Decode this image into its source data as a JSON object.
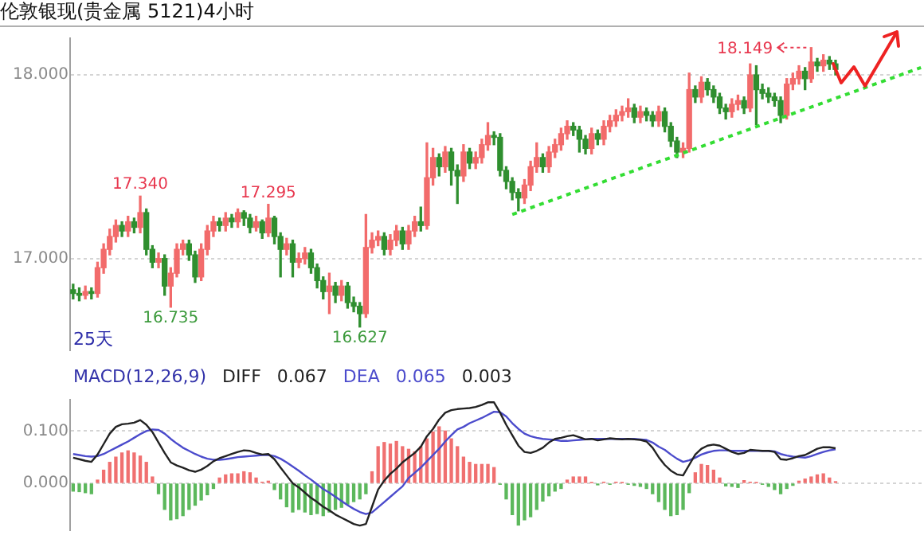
{
  "chart_data": [
    {
      "type": "candlestick",
      "title": "伦敦银现(贵金属 5121)4小时",
      "categories": [
        null,
        null,
        null,
        null,
        null,
        null,
        null,
        null,
        null,
        null,
        null,
        null,
        null,
        null,
        null,
        null,
        null,
        null,
        null,
        null,
        null,
        null,
        null,
        null,
        null,
        null,
        null,
        null,
        null,
        null,
        null,
        null,
        null,
        null,
        null,
        null,
        null,
        null,
        null,
        null,
        null,
        null,
        null,
        null,
        null,
        null,
        null,
        null,
        null,
        null,
        null,
        null,
        null,
        null,
        null,
        null,
        null,
        null,
        null,
        null,
        null,
        null,
        null,
        null,
        null,
        null,
        null,
        null,
        null,
        null,
        null,
        null,
        null,
        null,
        null,
        null,
        null,
        null,
        null,
        null,
        null,
        null,
        null,
        null,
        null,
        null,
        null,
        null,
        null,
        null,
        null,
        null,
        null,
        null,
        null,
        null,
        null,
        null,
        null,
        null,
        null,
        null,
        null,
        null,
        null,
        null,
        null,
        null,
        null,
        null,
        null,
        null,
        null,
        null,
        null,
        null,
        null,
        null,
        null,
        null,
        null,
        null,
        null,
        null,
        null,
        null,
        null,
        null,
        null,
        null,
        null,
        null,
        null,
        null,
        null,
        null,
        null,
        null,
        null,
        null
      ],
      "ohlc": [
        [
          16.83,
          16.86,
          16.78,
          16.81
        ],
        [
          16.81,
          16.84,
          16.77,
          16.8
        ],
        [
          16.8,
          16.85,
          16.78,
          16.82
        ],
        [
          16.82,
          16.84,
          16.78,
          16.81
        ],
        [
          16.81,
          16.98,
          16.79,
          16.95
        ],
        [
          16.95,
          17.08,
          16.92,
          17.05
        ],
        [
          17.05,
          17.16,
          17.02,
          17.12
        ],
        [
          17.12,
          17.21,
          17.09,
          17.18
        ],
        [
          17.18,
          17.2,
          17.12,
          17.15
        ],
        [
          17.15,
          17.23,
          17.12,
          17.2
        ],
        [
          17.2,
          17.22,
          17.14,
          17.17
        ],
        [
          17.17,
          17.34,
          17.14,
          17.25
        ],
        [
          17.25,
          17.27,
          17.02,
          17.05
        ],
        [
          17.05,
          17.07,
          16.95,
          16.98
        ],
        [
          16.98,
          17.03,
          16.95,
          17
        ],
        [
          17,
          17.02,
          16.8,
          16.85
        ],
        [
          16.85,
          16.95,
          16.735,
          16.92
        ],
        [
          16.92,
          17.08,
          16.9,
          17.05
        ],
        [
          17.05,
          17.1,
          17.02,
          17.08
        ],
        [
          17.08,
          17.1,
          16.99,
          17.02
        ],
        [
          17.02,
          17.04,
          16.87,
          16.9
        ],
        [
          16.9,
          17.08,
          16.88,
          17.05
        ],
        [
          17.05,
          17.18,
          17.02,
          17.15
        ],
        [
          17.15,
          17.23,
          17.12,
          17.2
        ],
        [
          17.2,
          17.22,
          17.15,
          17.18
        ],
        [
          17.18,
          17.25,
          17.15,
          17.22
        ],
        [
          17.22,
          17.24,
          17.17,
          17.2
        ],
        [
          17.2,
          17.27,
          17.17,
          17.25
        ],
        [
          17.25,
          17.26,
          17.18,
          17.22
        ],
        [
          17.22,
          17.24,
          17.14,
          17.17
        ],
        [
          17.17,
          17.23,
          17.15,
          17.2
        ],
        [
          17.2,
          17.21,
          17.11,
          17.14
        ],
        [
          17.14,
          17.295,
          17.12,
          17.22
        ],
        [
          17.22,
          17.23,
          17.08,
          17.12
        ],
        [
          17.12,
          17.14,
          16.9,
          17.05
        ],
        [
          17.05,
          17.11,
          17.02,
          17.08
        ],
        [
          17.08,
          17.1,
          16.9,
          16.98
        ],
        [
          16.98,
          17.03,
          16.95,
          17
        ],
        [
          17,
          17.06,
          16.97,
          17.03
        ],
        [
          17.03,
          17.05,
          16.92,
          16.95
        ],
        [
          16.95,
          16.97,
          16.84,
          16.88
        ],
        [
          16.88,
          16.9,
          16.78,
          16.82
        ],
        [
          16.82,
          16.92,
          16.7,
          16.85
        ],
        [
          16.85,
          16.87,
          16.76,
          16.8
        ],
        [
          16.8,
          16.88,
          16.77,
          16.85
        ],
        [
          16.85,
          16.87,
          16.73,
          16.76
        ],
        [
          16.76,
          16.79,
          16.71,
          16.74
        ],
        [
          16.74,
          16.76,
          16.627,
          16.7
        ],
        [
          16.7,
          17.24,
          16.68,
          17.06
        ],
        [
          17.06,
          17.14,
          17.03,
          17.1
        ],
        [
          17.1,
          17.15,
          17.07,
          17.12
        ],
        [
          17.12,
          17.14,
          17.02,
          17.05
        ],
        [
          17.05,
          17.13,
          17.02,
          17.1
        ],
        [
          17.1,
          17.18,
          17.07,
          17.15
        ],
        [
          17.15,
          17.17,
          17.05,
          17.08
        ],
        [
          17.08,
          17.18,
          17.05,
          17.15
        ],
        [
          17.15,
          17.23,
          17.12,
          17.2
        ],
        [
          17.2,
          17.28,
          17.15,
          17.18
        ],
        [
          17.18,
          17.63,
          17.16,
          17.44
        ],
        [
          17.44,
          17.6,
          17.4,
          17.55
        ],
        [
          17.55,
          17.57,
          17.45,
          17.5
        ],
        [
          17.5,
          17.61,
          17.47,
          17.58
        ],
        [
          17.58,
          17.6,
          17.4,
          17.48
        ],
        [
          17.48,
          17.51,
          17.3,
          17.45
        ],
        [
          17.45,
          17.62,
          17.42,
          17.58
        ],
        [
          17.58,
          17.6,
          17.49,
          17.52
        ],
        [
          17.52,
          17.58,
          17.49,
          17.55
        ],
        [
          17.55,
          17.65,
          17.52,
          17.62
        ],
        [
          17.62,
          17.74,
          17.59,
          17.67
        ],
        [
          17.67,
          17.69,
          17.62,
          17.66
        ],
        [
          17.66,
          17.68,
          17.45,
          17.48
        ],
        [
          17.48,
          17.5,
          17.38,
          17.42
        ],
        [
          17.42,
          17.44,
          17.32,
          17.36
        ],
        [
          17.36,
          17.38,
          17.26,
          17.33
        ],
        [
          17.33,
          17.43,
          17.3,
          17.4
        ],
        [
          17.4,
          17.53,
          17.37,
          17.5
        ],
        [
          17.5,
          17.63,
          17.47,
          17.55
        ],
        [
          17.55,
          17.57,
          17.47,
          17.5
        ],
        [
          17.5,
          17.61,
          17.47,
          17.58
        ],
        [
          17.58,
          17.65,
          17.55,
          17.62
        ],
        [
          17.62,
          17.71,
          17.59,
          17.68
        ],
        [
          17.68,
          17.75,
          17.65,
          17.72
        ],
        [
          17.72,
          17.74,
          17.67,
          17.7
        ],
        [
          17.7,
          17.72,
          17.58,
          17.65
        ],
        [
          17.65,
          17.67,
          17.57,
          17.6
        ],
        [
          17.6,
          17.71,
          17.57,
          17.68
        ],
        [
          17.68,
          17.7,
          17.62,
          17.65
        ],
        [
          17.65,
          17.75,
          17.62,
          17.72
        ],
        [
          17.72,
          17.78,
          17.69,
          17.75
        ],
        [
          17.75,
          17.81,
          17.72,
          17.78
        ],
        [
          17.78,
          17.83,
          17.75,
          17.8
        ],
        [
          17.8,
          17.87,
          17.77,
          17.82
        ],
        [
          17.82,
          17.84,
          17.74,
          17.77
        ],
        [
          17.77,
          17.83,
          17.74,
          17.8
        ],
        [
          17.8,
          17.82,
          17.75,
          17.78
        ],
        [
          17.78,
          17.8,
          17.72,
          17.75
        ],
        [
          17.75,
          17.83,
          17.72,
          17.8
        ],
        [
          17.8,
          17.82,
          17.69,
          17.72
        ],
        [
          17.72,
          17.74,
          17.61,
          17.64
        ],
        [
          17.64,
          17.66,
          17.55,
          17.58
        ],
        [
          17.58,
          17.63,
          17.55,
          17.6
        ],
        [
          17.6,
          18.01,
          17.58,
          17.92
        ],
        [
          17.92,
          17.94,
          17.85,
          17.88
        ],
        [
          17.88,
          17.99,
          17.85,
          17.96
        ],
        [
          17.96,
          17.98,
          17.89,
          17.92
        ],
        [
          17.92,
          17.94,
          17.85,
          17.88
        ],
        [
          17.88,
          17.9,
          17.79,
          17.82
        ],
        [
          17.82,
          17.84,
          17.76,
          17.8
        ],
        [
          17.8,
          17.87,
          17.77,
          17.84
        ],
        [
          17.84,
          17.89,
          17.81,
          17.86
        ],
        [
          17.86,
          17.88,
          17.79,
          17.82
        ],
        [
          17.82,
          18.06,
          17.8,
          18
        ],
        [
          18,
          18.05,
          17.73,
          17.92
        ],
        [
          17.92,
          17.95,
          17.87,
          17.9
        ],
        [
          17.9,
          17.93,
          17.85,
          17.88
        ],
        [
          17.88,
          17.9,
          17.83,
          17.86
        ],
        [
          17.86,
          17.88,
          17.74,
          17.78
        ],
        [
          17.78,
          17.98,
          17.76,
          17.95
        ],
        [
          17.95,
          18.01,
          17.92,
          17.98
        ],
        [
          17.98,
          18.05,
          17.95,
          18.02
        ],
        [
          18.02,
          18.04,
          17.92,
          17.98
        ],
        [
          17.98,
          18.149,
          17.96,
          18.07
        ],
        [
          18.07,
          18.09,
          18.02,
          18.05
        ],
        [
          18.05,
          18.11,
          18.02,
          18.08
        ],
        [
          18.08,
          18.1,
          18.03,
          18.06
        ],
        [
          18.06,
          18.08,
          18,
          18.03
        ],
        null,
        null,
        null,
        null,
        null,
        null,
        null,
        null,
        null,
        null,
        null,
        null,
        null,
        null
      ],
      "colors": [
        "#2f8f2f",
        "#2f8f2f",
        "#f26b6b",
        "#2f8f2f",
        "#f26b6b",
        "#f26b6b",
        "#f26b6b",
        "#f26b6b",
        "#2f8f2f",
        "#f26b6b",
        "#2f8f2f",
        "#f26b6b",
        "#2f8f2f",
        "#2f8f2f",
        "#f26b6b",
        "#2f8f2f",
        "#f26b6b",
        "#f26b6b",
        "#f26b6b",
        "#2f8f2f",
        "#2f8f2f",
        "#f26b6b",
        "#f26b6b",
        "#f26b6b",
        "#2f8f2f",
        "#f26b6b",
        "#2f8f2f",
        "#f26b6b",
        "#2f8f2f",
        "#2f8f2f",
        "#f26b6b",
        "#2f8f2f",
        "#f26b6b",
        "#2f8f2f",
        "#2f8f2f",
        "#f26b6b",
        "#2f8f2f",
        "#f26b6b",
        "#f26b6b",
        "#2f8f2f",
        "#2f8f2f",
        "#2f8f2f",
        "#f26b6b",
        "#2f8f2f",
        "#f26b6b",
        "#2f8f2f",
        "#2f8f2f",
        "#2f8f2f",
        "#f26b6b",
        "#f26b6b",
        "#f26b6b",
        "#2f8f2f",
        "#f26b6b",
        "#f26b6b",
        "#2f8f2f",
        "#f26b6b",
        "#f26b6b",
        "#2f8f2f",
        "#f26b6b",
        "#f26b6b",
        "#2f8f2f",
        "#f26b6b",
        "#2f8f2f",
        "#2f8f2f",
        "#f26b6b",
        "#2f8f2f",
        "#f26b6b",
        "#f26b6b",
        "#f26b6b",
        "#2f8f2f",
        "#2f8f2f",
        "#2f8f2f",
        "#2f8f2f",
        "#2f8f2f",
        "#f26b6b",
        "#f26b6b",
        "#f26b6b",
        "#2f8f2f",
        "#f26b6b",
        "#f26b6b",
        "#f26b6b",
        "#f26b6b",
        "#2f8f2f",
        "#2f8f2f",
        "#2f8f2f",
        "#f26b6b",
        "#2f8f2f",
        "#f26b6b",
        "#f26b6b",
        "#f26b6b",
        "#f26b6b",
        "#f26b6b",
        "#2f8f2f",
        "#f26b6b",
        "#2f8f2f",
        "#2f8f2f",
        "#f26b6b",
        "#2f8f2f",
        "#2f8f2f",
        "#2f8f2f",
        "#f26b6b",
        "#f26b6b",
        "#2f8f2f",
        "#f26b6b",
        "#2f8f2f",
        "#2f8f2f",
        "#2f8f2f",
        "#2f8f2f",
        "#f26b6b",
        "#f26b6b",
        "#2f8f2f",
        "#f26b6b",
        "#2f8f2f",
        "#2f8f2f",
        "#2f8f2f",
        "#2f8f2f",
        "#2f8f2f",
        "#f26b6b",
        "#f26b6b",
        "#f26b6b",
        "#2f8f2f",
        "#f26b6b",
        "#2f8f2f",
        "#f26b6b",
        "#2f8f2f",
        "#2f8f2f",
        null,
        null,
        null,
        null,
        null,
        null,
        null,
        null,
        null,
        null,
        null,
        null,
        null,
        null
      ],
      "value_labels": [
        null,
        null,
        null,
        null,
        null,
        null,
        null,
        null,
        null,
        null,
        null,
        "17.340",
        null,
        null,
        null,
        null,
        "16.735",
        null,
        null,
        null,
        null,
        null,
        null,
        null,
        null,
        null,
        null,
        null,
        null,
        null,
        null,
        null,
        "17.295",
        null,
        null,
        null,
        null,
        null,
        null,
        null,
        null,
        null,
        null,
        null,
        null,
        null,
        null,
        "16.627",
        null,
        null,
        null,
        null,
        null,
        null,
        null,
        null,
        null,
        null,
        null,
        null,
        null,
        null,
        null,
        null,
        null,
        null,
        null,
        null,
        null,
        null,
        null,
        null,
        null,
        null,
        null,
        null,
        null,
        null,
        null,
        null,
        null,
        null,
        null,
        null,
        null,
        null,
        null,
        null,
        null,
        null,
        null,
        null,
        null,
        null,
        null,
        null,
        null,
        null,
        null,
        null,
        null,
        null,
        null,
        null,
        null,
        null,
        null,
        null,
        null,
        null,
        null,
        null,
        null,
        null,
        null,
        null,
        null,
        null,
        null,
        null,
        null,
        "18.149",
        null,
        null,
        null,
        null,
        null,
        null,
        null,
        null,
        null,
        null,
        null,
        null,
        null,
        null,
        null,
        null,
        null,
        null
      ],
      "series": [
        {
          "type": "line",
          "color": "#33dd33",
          "line_style": "dotted",
          "values": [
            null,
            null,
            null,
            null,
            null,
            null,
            null,
            null,
            null,
            null,
            null,
            null,
            null,
            null,
            null,
            null,
            null,
            null,
            null,
            null,
            null,
            null,
            null,
            null,
            null,
            null,
            null,
            null,
            null,
            null,
            null,
            null,
            null,
            null,
            null,
            null,
            null,
            null,
            null,
            null,
            null,
            null,
            null,
            null,
            null,
            null,
            null,
            null,
            null,
            null,
            null,
            null,
            null,
            null,
            null,
            null,
            null,
            null,
            null,
            null,
            null,
            null,
            null,
            null,
            null,
            null,
            null,
            null,
            null,
            null,
            null,
            null,
            17.24,
            null,
            null,
            null,
            null,
            null,
            null,
            null,
            null,
            null,
            null,
            null,
            null,
            null,
            null,
            null,
            null,
            null,
            null,
            null,
            null,
            null,
            null,
            null,
            null,
            null,
            null,
            null,
            null,
            null,
            null,
            null,
            null,
            null,
            null,
            null,
            null,
            null,
            null,
            null,
            null,
            null,
            null,
            null,
            null,
            null,
            null,
            null,
            null,
            null,
            null,
            null,
            null,
            null,
            null,
            null,
            null,
            null,
            null,
            null,
            null,
            null,
            null,
            null,
            null,
            null,
            null,
            18.04
          ]
        }
      ],
      "ylim": [
        16.5,
        18.2
      ],
      "yticks": [
        {
          "value": 17,
          "label": "17.000"
        },
        {
          "value": 18,
          "label": "18.000"
        }
      ],
      "grid": "y",
      "tick_labels": "y",
      "annotations": [
        "25天"
      ]
    },
    {
      "type": "bar",
      "title": "MACD(12,26,9)",
      "categories": [
        null,
        null,
        null,
        null,
        null,
        null,
        null,
        null,
        null,
        null,
        null,
        null,
        null,
        null,
        null,
        null,
        null,
        null,
        null,
        null,
        null,
        null,
        null,
        null,
        null,
        null,
        null,
        null,
        null,
        null,
        null,
        null,
        null,
        null,
        null,
        null,
        null,
        null,
        null,
        null,
        null,
        null,
        null,
        null,
        null,
        null,
        null,
        null,
        null,
        null,
        null,
        null,
        null,
        null,
        null,
        null,
        null,
        null,
        null,
        null,
        null,
        null,
        null,
        null,
        null,
        null,
        null,
        null,
        null,
        null,
        null,
        null,
        null,
        null,
        null,
        null,
        null,
        null,
        null,
        null,
        null,
        null,
        null,
        null,
        null,
        null,
        null,
        null,
        null,
        null,
        null,
        null,
        null,
        null,
        null,
        null,
        null,
        null,
        null,
        null,
        null,
        null,
        null,
        null,
        null,
        null,
        null,
        null,
        null,
        null,
        null,
        null,
        null,
        null,
        null,
        null,
        null,
        null,
        null,
        null,
        null,
        null,
        null,
        null,
        null,
        null,
        null,
        null,
        null,
        null,
        null,
        null,
        null,
        null,
        null,
        null,
        null,
        null,
        null,
        null
      ],
      "series": [
        {
          "name": "DIFF",
          "type": "line",
          "color": "#222222",
          "values": [
            0.049,
            0.046,
            0.043,
            0.041,
            0.055,
            0.075,
            0.095,
            0.108,
            0.113,
            0.114,
            0.116,
            0.121,
            0.112,
            0.098,
            0.078,
            0.058,
            0.04,
            0.034,
            0.03,
            0.025,
            0.022,
            0.026,
            0.033,
            0.042,
            0.048,
            0.052,
            0.056,
            0.06,
            0.063,
            0.062,
            0.058,
            0.055,
            0.056,
            0.046,
            0.03,
            0.015,
            0,
            -0.008,
            -0.018,
            -0.028,
            -0.036,
            -0.045,
            -0.052,
            -0.06,
            -0.066,
            -0.072,
            -0.078,
            -0.081,
            -0.078,
            -0.045,
            -0.012,
            0.005,
            0.018,
            0.028,
            0.04,
            0.049,
            0.058,
            0.07,
            0.09,
            0.104,
            0.122,
            0.135,
            0.14,
            0.142,
            0.143,
            0.144,
            0.146,
            0.15,
            0.155,
            0.155,
            0.135,
            0.112,
            0.092,
            0.072,
            0.06,
            0.058,
            0.062,
            0.068,
            0.078,
            0.085,
            0.087,
            0.09,
            0.092,
            0.088,
            0.084,
            0.085,
            0.082,
            0.084,
            0.086,
            0.085,
            0.084,
            0.085,
            0.084,
            0.083,
            0.08,
            0.068,
            0.05,
            0.035,
            0.024,
            0.017,
            0.015,
            0.035,
            0.055,
            0.066,
            0.072,
            0.074,
            0.072,
            0.066,
            0.06,
            0.056,
            0.058,
            0.064,
            0.063,
            0.062,
            0.062,
            0.06,
            0.046,
            0.045,
            0.048,
            0.052,
            0.054,
            0.06,
            0.066,
            0.069,
            0.069,
            0.067,
            null,
            null,
            null,
            null,
            null,
            null,
            null,
            null,
            null,
            null,
            null,
            null,
            null,
            null
          ]
        },
        {
          "name": "DEA",
          "type": "line",
          "color": "#4b4bcc",
          "values": [
            0.056,
            0.054,
            0.052,
            0.051,
            0.052,
            0.056,
            0.062,
            0.068,
            0.074,
            0.08,
            0.087,
            0.094,
            0.1,
            0.103,
            0.102,
            0.095,
            0.085,
            0.076,
            0.068,
            0.062,
            0.056,
            0.051,
            0.047,
            0.045,
            0.045,
            0.046,
            0.048,
            0.05,
            0.051,
            0.052,
            0.053,
            0.054,
            0.054,
            0.052,
            0.047,
            0.04,
            0.032,
            0.024,
            0.015,
            0.007,
            -0.002,
            -0.011,
            -0.018,
            -0.026,
            -0.034,
            -0.042,
            -0.049,
            -0.055,
            -0.059,
            -0.056,
            -0.046,
            -0.036,
            -0.026,
            -0.016,
            -0.006,
            0.01,
            0.02,
            0.03,
            0.042,
            0.054,
            0.066,
            0.08,
            0.092,
            0.103,
            0.108,
            0.115,
            0.12,
            0.125,
            0.131,
            0.137,
            0.136,
            0.128,
            0.115,
            0.104,
            0.095,
            0.09,
            0.087,
            0.085,
            0.084,
            0.083,
            0.081,
            0.081,
            0.082,
            0.083,
            0.084,
            0.085,
            0.085,
            0.085,
            0.085,
            0.085,
            0.085,
            0.085,
            0.085,
            0.084,
            0.083,
            0.078,
            0.07,
            0.064,
            0.055,
            0.047,
            0.041,
            0.044,
            0.049,
            0.055,
            0.059,
            0.062,
            0.063,
            0.063,
            0.062,
            0.062,
            0.062,
            0.062,
            0.062,
            0.062,
            0.062,
            0.061,
            0.056,
            0.053,
            0.051,
            0.05,
            0.049,
            0.052,
            0.056,
            0.06,
            0.063,
            0.065,
            null,
            null,
            null,
            null,
            null,
            null,
            null,
            null,
            null,
            null,
            null,
            null,
            null,
            null
          ]
        },
        {
          "type": "bar",
          "values": [
            -0.015,
            -0.016,
            -0.018,
            -0.02,
            0.006,
            0.025,
            0.04,
            0.05,
            0.058,
            0.062,
            0.058,
            0.052,
            0.04,
            0.012,
            -0.02,
            -0.05,
            -0.07,
            -0.068,
            -0.062,
            -0.05,
            -0.042,
            -0.032,
            -0.022,
            -0.01,
            0.01,
            0.016,
            0.018,
            0.018,
            0.022,
            0.02,
            0.01,
            0.002,
            0.004,
            -0.012,
            -0.03,
            -0.045,
            -0.055,
            -0.05,
            -0.055,
            -0.06,
            -0.058,
            -0.062,
            -0.055,
            -0.05,
            -0.046,
            -0.04,
            -0.035,
            -0.03,
            -0.02,
            0.022,
            0.07,
            0.078,
            0.075,
            0.08,
            0.07,
            0.065,
            0.06,
            0.07,
            0.085,
            0.098,
            0.108,
            0.1,
            0.085,
            0.07,
            0.05,
            0.04,
            0.036,
            0.036,
            0.036,
            0.03,
            -0.002,
            -0.03,
            -0.06,
            -0.08,
            -0.07,
            -0.064,
            -0.05,
            -0.034,
            -0.024,
            -0.015,
            -0.01,
            0.006,
            0.012,
            0.012,
            0.012,
            0.001,
            -0.003,
            0.002,
            -0.002,
            0.002,
            0.001,
            -0.002,
            -0.004,
            -0.006,
            -0.01,
            -0.02,
            -0.035,
            -0.05,
            -0.062,
            -0.06,
            -0.05,
            -0.018,
            0.02,
            0.036,
            0.034,
            0.025,
            0.01,
            -0.005,
            -0.006,
            -0.008,
            0.005,
            0.002,
            0.001,
            -0.002,
            -0.006,
            -0.012,
            -0.02,
            -0.01,
            -0.004,
            0.004,
            0.008,
            0.012,
            0.016,
            0.018,
            0.01,
            0.003,
            null,
            null,
            null,
            null,
            null,
            null,
            null,
            null,
            null,
            null,
            null,
            null,
            null,
            null
          ],
          "colors": [
            "#5cb85c",
            "#5cb85c",
            "#5cb85c",
            "#5cb85c",
            "#f07070",
            "#f07070",
            "#f07070",
            "#f07070",
            "#f07070",
            "#f07070",
            "#f07070",
            "#f07070",
            "#f07070",
            "#f07070",
            "#5cb85c",
            "#5cb85c",
            "#5cb85c",
            "#5cb85c",
            "#5cb85c",
            "#5cb85c",
            "#5cb85c",
            "#5cb85c",
            "#5cb85c",
            "#5cb85c",
            "#f07070",
            "#f07070",
            "#f07070",
            "#f07070",
            "#f07070",
            "#f07070",
            "#f07070",
            "#f07070",
            "#f07070",
            "#5cb85c",
            "#5cb85c",
            "#5cb85c",
            "#5cb85c",
            "#5cb85c",
            "#5cb85c",
            "#5cb85c",
            "#5cb85c",
            "#5cb85c",
            "#5cb85c",
            "#5cb85c",
            "#5cb85c",
            "#5cb85c",
            "#5cb85c",
            "#5cb85c",
            "#5cb85c",
            "#f07070",
            "#f07070",
            "#f07070",
            "#f07070",
            "#f07070",
            "#f07070",
            "#f07070",
            "#f07070",
            "#f07070",
            "#f07070",
            "#f07070",
            "#f07070",
            "#f07070",
            "#f07070",
            "#f07070",
            "#f07070",
            "#f07070",
            "#f07070",
            "#f07070",
            "#f07070",
            "#f07070",
            "#5cb85c",
            "#5cb85c",
            "#5cb85c",
            "#5cb85c",
            "#5cb85c",
            "#5cb85c",
            "#5cb85c",
            "#5cb85c",
            "#5cb85c",
            "#5cb85c",
            "#5cb85c",
            "#f07070",
            "#f07070",
            "#f07070",
            "#f07070",
            "#f07070",
            "#5cb85c",
            "#f07070",
            "#5cb85c",
            "#f07070",
            "#f07070",
            "#5cb85c",
            "#5cb85c",
            "#5cb85c",
            "#5cb85c",
            "#5cb85c",
            "#5cb85c",
            "#5cb85c",
            "#5cb85c",
            "#5cb85c",
            "#5cb85c",
            "#5cb85c",
            "#f07070",
            "#f07070",
            "#f07070",
            "#f07070",
            "#f07070",
            "#5cb85c",
            "#5cb85c",
            "#5cb85c",
            "#f07070",
            "#f07070",
            "#f07070",
            "#5cb85c",
            "#5cb85c",
            "#5cb85c",
            "#5cb85c",
            "#5cb85c",
            "#5cb85c",
            "#f07070",
            "#f07070",
            "#f07070",
            "#f07070",
            "#f07070",
            "#f07070",
            "#f07070",
            null,
            null,
            null,
            null,
            null,
            null,
            null,
            null,
            null,
            null,
            null,
            null,
            null,
            null
          ]
        }
      ],
      "ylim": [
        -0.09,
        0.16
      ],
      "yticks": [
        {
          "value": 0.1,
          "label": "0.100"
        },
        {
          "value": 0,
          "label": "0.000"
        }
      ],
      "grid": "y",
      "tick_labels": "y",
      "legend": "top left",
      "annotations": [
        "0.067",
        "0.065",
        "0.003"
      ]
    }
  ]
}
